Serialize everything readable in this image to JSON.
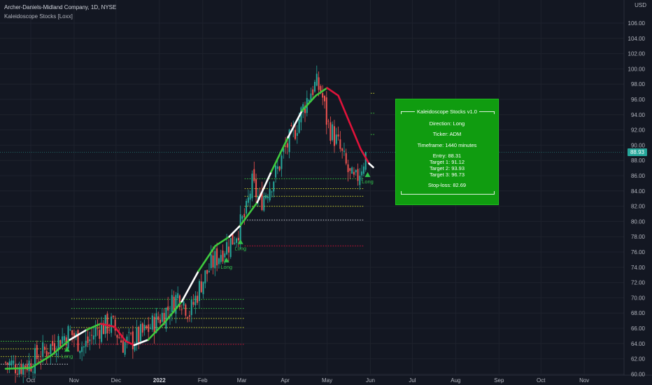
{
  "legend": {
    "title": "Archer-Daniels-Midland Company, 1D, NYSE",
    "indicator": "Kaleidoscope Stocks [Loxx]"
  },
  "currency": "USD",
  "last_price": "88.93",
  "info_panel": {
    "header": "Kaleidoscope Stocks v1.0",
    "direction": "Direction: Long",
    "ticker": "Ticker: ADM",
    "timeframe": "Timeframe: 1440 minutes",
    "entry": "Entry: 88.31",
    "target1": "Target 1: 91.12",
    "target2": "Target 2: 93.93",
    "target3": "Target 3: 96.73",
    "stoploss": "Stop-loss: 82.69"
  },
  "colors": {
    "background": "#131722",
    "up": "#26a69a",
    "down": "#ef5350",
    "trend_up": "#3ec93e",
    "trend_down": "#e0133a",
    "panel": "#109c10",
    "signal": "#31c24b"
  },
  "chart_data": {
    "type": "candlestick",
    "title": "Archer-Daniels-Midland Company, 1D, NYSE",
    "ylim": [
      59.5,
      107.5
    ],
    "y_ticks": [
      60,
      62,
      64,
      66,
      68,
      70,
      72,
      74,
      76,
      78,
      80,
      82,
      84,
      86,
      88,
      90,
      92,
      94,
      96,
      98,
      100,
      102,
      104,
      106
    ],
    "x_labels": [
      {
        "label": "Oct",
        "day": 0,
        "bold": false
      },
      {
        "label": "Nov",
        "day": 31,
        "bold": false
      },
      {
        "label": "Dec",
        "day": 61,
        "bold": false
      },
      {
        "label": "2022",
        "day": 92,
        "bold": true
      },
      {
        "label": "Feb",
        "day": 123,
        "bold": false
      },
      {
        "label": "Mar",
        "day": 151,
        "bold": false
      },
      {
        "label": "Apr",
        "day": 182,
        "bold": false
      },
      {
        "label": "May",
        "day": 212,
        "bold": false
      },
      {
        "label": "Jun",
        "day": 243,
        "bold": false
      },
      {
        "label": "Jul",
        "day": 273,
        "bold": false
      },
      {
        "label": "Aug",
        "day": 304,
        "bold": false
      },
      {
        "label": "Sep",
        "day": 335,
        "bold": false
      },
      {
        "label": "Oct",
        "day": 365,
        "bold": false
      },
      {
        "label": "Nov",
        "day": 396,
        "bold": false
      }
    ],
    "close_path": [
      {
        "day": -18,
        "close": 61.5
      },
      {
        "day": -8,
        "close": 61.0
      },
      {
        "day": 0,
        "close": 61.5
      },
      {
        "day": 10,
        "close": 63.0
      },
      {
        "day": 20,
        "close": 64.5
      },
      {
        "day": 28,
        "close": 65.5
      },
      {
        "day": 38,
        "close": 63.5
      },
      {
        "day": 48,
        "close": 66.0
      },
      {
        "day": 58,
        "close": 66.5
      },
      {
        "day": 66,
        "close": 64.0
      },
      {
        "day": 74,
        "close": 64.5
      },
      {
        "day": 82,
        "close": 65.5
      },
      {
        "day": 90,
        "close": 67.0
      },
      {
        "day": 98,
        "close": 68.5
      },
      {
        "day": 106,
        "close": 70.5
      },
      {
        "day": 114,
        "close": 68.0
      },
      {
        "day": 122,
        "close": 72.0
      },
      {
        "day": 130,
        "close": 74.5
      },
      {
        "day": 138,
        "close": 76.5
      },
      {
        "day": 144,
        "close": 77.5
      },
      {
        "day": 150,
        "close": 79.5
      },
      {
        "day": 154,
        "close": 81.0
      },
      {
        "day": 158,
        "close": 85.0
      },
      {
        "day": 164,
        "close": 82.5
      },
      {
        "day": 170,
        "close": 84.5
      },
      {
        "day": 176,
        "close": 86.5
      },
      {
        "day": 182,
        "close": 89.5
      },
      {
        "day": 188,
        "close": 91.5
      },
      {
        "day": 194,
        "close": 94.5
      },
      {
        "day": 200,
        "close": 97.0
      },
      {
        "day": 204,
        "close": 98.0
      },
      {
        "day": 208,
        "close": 97.0
      },
      {
        "day": 212,
        "close": 93.0
      },
      {
        "day": 216,
        "close": 91.5
      },
      {
        "day": 220,
        "close": 90.0
      },
      {
        "day": 224,
        "close": 88.0
      },
      {
        "day": 228,
        "close": 86.0
      },
      {
        "day": 232,
        "close": 85.0
      },
      {
        "day": 236,
        "close": 87.0
      },
      {
        "day": 240,
        "close": 88.93
      }
    ],
    "trend_line": [
      {
        "day": -18,
        "value": 60.7,
        "dir": "up"
      },
      {
        "day": 0,
        "value": 60.8,
        "dir": "up"
      },
      {
        "day": 15,
        "value": 62.5,
        "dir": "up"
      },
      {
        "day": 28,
        "value": 64.5,
        "dir": "neutral"
      },
      {
        "day": 40,
        "value": 65.8,
        "dir": "up"
      },
      {
        "day": 50,
        "value": 66.6,
        "dir": "down"
      },
      {
        "day": 60,
        "value": 66.2,
        "dir": "down"
      },
      {
        "day": 68,
        "value": 64.3,
        "dir": "down"
      },
      {
        "day": 74,
        "value": 63.8,
        "dir": "neutral"
      },
      {
        "day": 84,
        "value": 64.5,
        "dir": "up"
      },
      {
        "day": 96,
        "value": 66.8,
        "dir": "up"
      },
      {
        "day": 108,
        "value": 69.5,
        "dir": "neutral"
      },
      {
        "day": 120,
        "value": 73.5,
        "dir": "up"
      },
      {
        "day": 132,
        "value": 76.8,
        "dir": "up"
      },
      {
        "day": 142,
        "value": 78.0,
        "dir": "neutral"
      },
      {
        "day": 150,
        "value": 79.5,
        "dir": "up"
      },
      {
        "day": 162,
        "value": 82.5,
        "dir": "neutral"
      },
      {
        "day": 172,
        "value": 86.5,
        "dir": "up"
      },
      {
        "day": 184,
        "value": 91.0,
        "dir": "neutral"
      },
      {
        "day": 194,
        "value": 94.5,
        "dir": "up"
      },
      {
        "day": 204,
        "value": 96.5,
        "dir": "up"
      },
      {
        "day": 212,
        "value": 97.5,
        "dir": "down"
      },
      {
        "day": 220,
        "value": 96.5,
        "dir": "down"
      },
      {
        "day": 228,
        "value": 93.0,
        "dir": "down"
      },
      {
        "day": 236,
        "value": 89.5,
        "dir": "down"
      },
      {
        "day": 242,
        "value": 87.6,
        "dir": "neutral"
      },
      {
        "day": 245,
        "value": 87.1,
        "dir": "neutral"
      }
    ],
    "level_lines": [
      {
        "start": -25,
        "end": 27,
        "value": 64.3,
        "color": "#3ec93e"
      },
      {
        "start": -25,
        "end": 27,
        "value": 63.3,
        "color": "#c7d12e"
      },
      {
        "start": -25,
        "end": 27,
        "value": 62.3,
        "color": "#c7d12e"
      },
      {
        "start": -25,
        "end": 27,
        "value": 61.3,
        "color": "#d1d4dc"
      },
      {
        "start": 29,
        "end": 153,
        "value": 69.8,
        "color": "#3ec93e"
      },
      {
        "start": 29,
        "end": 153,
        "value": 68.6,
        "color": "#3ec93e"
      },
      {
        "start": 29,
        "end": 153,
        "value": 67.3,
        "color": "#c7d12e"
      },
      {
        "start": 29,
        "end": 153,
        "value": 66.1,
        "color": "#c7d12e"
      },
      {
        "start": 29,
        "end": 153,
        "value": 63.9,
        "color": "#e0133a"
      },
      {
        "start": 153,
        "end": 238,
        "value": 85.6,
        "color": "#3ec93e"
      },
      {
        "start": 153,
        "end": 238,
        "value": 84.3,
        "color": "#c7d12e"
      },
      {
        "start": 153,
        "end": 238,
        "value": 83.3,
        "color": "#c7d12e"
      },
      {
        "start": 153,
        "end": 238,
        "value": 82.0,
        "color": "#c7d12e"
      },
      {
        "start": 153,
        "end": 238,
        "value": 80.2,
        "color": "#d1d4dc"
      },
      {
        "start": 153,
        "end": 238,
        "value": 76.8,
        "color": "#e0133a"
      }
    ],
    "signals": [
      {
        "day": 26,
        "value": 63.3,
        "label": "Long"
      },
      {
        "day": 140,
        "value": 75.0,
        "label": "Long"
      },
      {
        "day": 150,
        "value": 77.4,
        "label": "Long"
      },
      {
        "day": 241,
        "value": 86.2,
        "label": "Long"
      }
    ]
  }
}
